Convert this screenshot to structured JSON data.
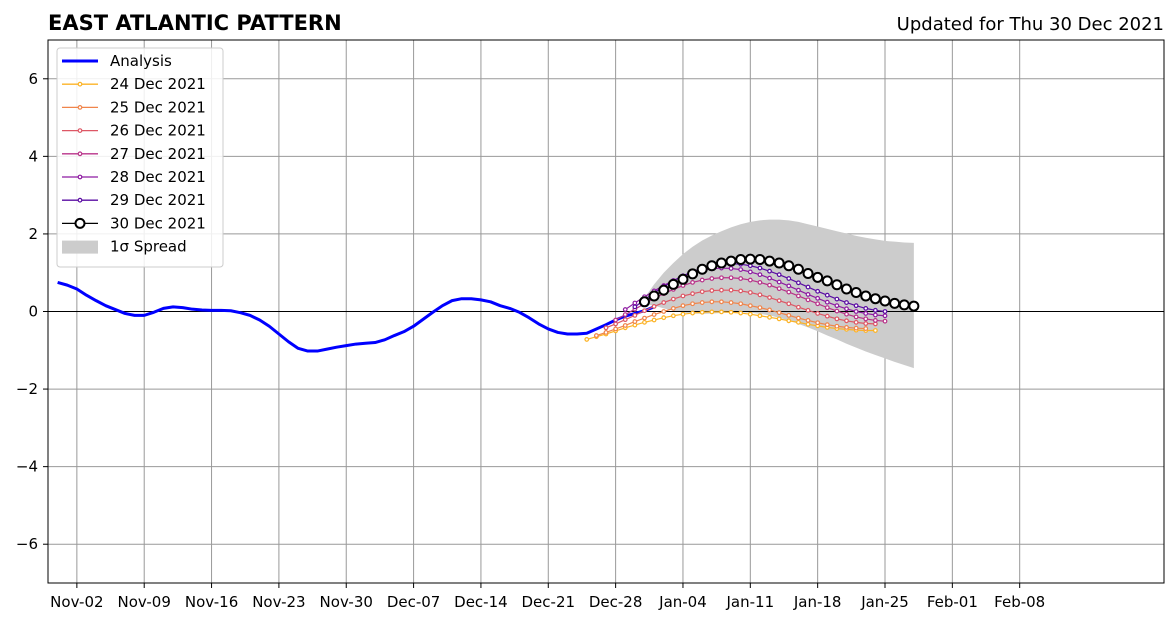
{
  "header": {
    "title": "EAST ATLANTIC PATTERN",
    "updated": "Updated for Thu 30 Dec 2021"
  },
  "chart_data": {
    "type": "line",
    "xlim": [
      -3,
      113
    ],
    "ylim": [
      -7,
      7
    ],
    "xticks": [
      {
        "x": 0,
        "label": "Nov-02"
      },
      {
        "x": 7,
        "label": "Nov-09"
      },
      {
        "x": 14,
        "label": "Nov-16"
      },
      {
        "x": 21,
        "label": "Nov-23"
      },
      {
        "x": 28,
        "label": "Nov-30"
      },
      {
        "x": 35,
        "label": "Dec-07"
      },
      {
        "x": 42,
        "label": "Dec-14"
      },
      {
        "x": 49,
        "label": "Dec-21"
      },
      {
        "x": 56,
        "label": "Dec-28"
      },
      {
        "x": 63,
        "label": "Jan-04"
      },
      {
        "x": 70,
        "label": "Jan-11"
      },
      {
        "x": 77,
        "label": "Jan-18"
      },
      {
        "x": 84,
        "label": "Jan-25"
      },
      {
        "x": 91,
        "label": "Feb-01"
      },
      {
        "x": 98,
        "label": "Feb-08"
      }
    ],
    "yticks": [
      {
        "y": -6,
        "label": "−6"
      },
      {
        "y": -4,
        "label": "−4"
      },
      {
        "y": -2,
        "label": "−2"
      },
      {
        "y": 0,
        "label": "0"
      },
      {
        "y": 2,
        "label": "2"
      },
      {
        "y": 4,
        "label": "4"
      },
      {
        "y": 6,
        "label": "6"
      }
    ],
    "grid": true,
    "legend_position": "top-left",
    "analysis": {
      "name": "Analysis",
      "color": "#0000ff",
      "start_x": -2,
      "values": [
        0.75,
        0.68,
        0.58,
        0.42,
        0.28,
        0.15,
        0.05,
        -0.05,
        -0.1,
        -0.1,
        -0.02,
        0.08,
        0.12,
        0.1,
        0.06,
        0.04,
        0.03,
        0.03,
        0.02,
        -0.03,
        -0.1,
        -0.22,
        -0.38,
        -0.58,
        -0.78,
        -0.95,
        -1.02,
        -1.02,
        -0.97,
        -0.92,
        -0.88,
        -0.84,
        -0.82,
        -0.8,
        -0.73,
        -0.62,
        -0.52,
        -0.38,
        -0.2,
        -0.02,
        0.15,
        0.28,
        0.33,
        0.33,
        0.3,
        0.25,
        0.15,
        0.08,
        -0.02,
        -0.16,
        -0.32,
        -0.45,
        -0.54,
        -0.58,
        -0.58,
        -0.56,
        -0.45,
        -0.34,
        -0.22,
        -0.12,
        -0.05,
        0.02,
        0.12
      ]
    },
    "forecasts": [
      {
        "name": "24 Dec 2021",
        "color": "#fcb326",
        "start_x": 53,
        "values": [
          -0.72,
          -0.65,
          -0.58,
          -0.5,
          -0.42,
          -0.35,
          -0.28,
          -0.22,
          -0.16,
          -0.11,
          -0.07,
          -0.04,
          -0.02,
          -0.01,
          -0.01,
          -0.02,
          -0.04,
          -0.07,
          -0.11,
          -0.15,
          -0.19,
          -0.24,
          -0.28,
          -0.33,
          -0.37,
          -0.41,
          -0.44,
          -0.46,
          -0.48,
          -0.49,
          -0.49
        ]
      },
      {
        "name": "25 Dec 2021",
        "color": "#f0854b",
        "start_x": 54,
        "values": [
          -0.62,
          -0.54,
          -0.45,
          -0.36,
          -0.26,
          -0.17,
          -0.08,
          0.0,
          0.08,
          0.15,
          0.2,
          0.23,
          0.25,
          0.25,
          0.23,
          0.2,
          0.15,
          0.1,
          0.04,
          -0.03,
          -0.1,
          -0.17,
          -0.23,
          -0.29,
          -0.34,
          -0.38,
          -0.41,
          -0.43,
          -0.44
        ]
      },
      {
        "name": "26 Dec 2021",
        "color": "#dd5765",
        "start_x": 55,
        "values": [
          -0.42,
          -0.32,
          -0.21,
          -0.1,
          0.02,
          0.13,
          0.23,
          0.32,
          0.4,
          0.46,
          0.51,
          0.54,
          0.55,
          0.55,
          0.53,
          0.49,
          0.43,
          0.36,
          0.28,
          0.2,
          0.11,
          0.03,
          -0.05,
          -0.12,
          -0.19,
          -0.24,
          -0.28,
          -0.31,
          -0.32
        ]
      },
      {
        "name": "27 Dec 2021",
        "color": "#b83289",
        "start_x": 56,
        "values": [
          -0.22,
          -0.08,
          0.06,
          0.2,
          0.34,
          0.46,
          0.57,
          0.67,
          0.75,
          0.81,
          0.85,
          0.87,
          0.87,
          0.85,
          0.81,
          0.75,
          0.68,
          0.59,
          0.5,
          0.4,
          0.3,
          0.2,
          0.1,
          0.01,
          -0.07,
          -0.14,
          -0.19,
          -0.23,
          -0.25
        ]
      },
      {
        "name": "28 Dec 2021",
        "color": "#8e1ba2",
        "start_x": 57,
        "values": [
          0.05,
          0.22,
          0.38,
          0.53,
          0.67,
          0.8,
          0.91,
          1.0,
          1.06,
          1.1,
          1.12,
          1.11,
          1.08,
          1.02,
          0.95,
          0.86,
          0.76,
          0.66,
          0.55,
          0.44,
          0.34,
          0.24,
          0.15,
          0.07,
          0.0,
          -0.05,
          -0.09,
          -0.11
        ]
      },
      {
        "name": "29 Dec 2021",
        "color": "#5a0ca3",
        "start_x": 58,
        "values": [
          0.12,
          0.3,
          0.48,
          0.64,
          0.79,
          0.92,
          1.03,
          1.12,
          1.18,
          1.22,
          1.23,
          1.22,
          1.18,
          1.12,
          1.04,
          0.95,
          0.85,
          0.74,
          0.63,
          0.52,
          0.42,
          0.32,
          0.23,
          0.15,
          0.08,
          0.03,
          0.0
        ]
      },
      {
        "name": "30 Dec 2021",
        "color": "#000000",
        "start_x": 59,
        "values": [
          0.25,
          0.4,
          0.55,
          0.7,
          0.83,
          0.97,
          1.09,
          1.18,
          1.25,
          1.3,
          1.34,
          1.35,
          1.34,
          1.3,
          1.25,
          1.18,
          1.09,
          0.98,
          0.88,
          0.79,
          0.69,
          0.58,
          0.49,
          0.4,
          0.33,
          0.27,
          0.21,
          0.17,
          0.14
        ]
      }
    ],
    "spread": {
      "name": "1σ Spread",
      "color": "#cccccc",
      "x_range": [
        59,
        87
      ],
      "upper": [
        0.35,
        0.7,
        1.0,
        1.25,
        1.48,
        1.67,
        1.83,
        1.96,
        2.07,
        2.17,
        2.25,
        2.31,
        2.35,
        2.37,
        2.37,
        2.35,
        2.31,
        2.25,
        2.19,
        2.13,
        2.07,
        2.01,
        1.95,
        1.9,
        1.86,
        1.82,
        1.8,
        1.78,
        1.77
      ],
      "lower": [
        0.2,
        0.15,
        0.08,
        0.02,
        -0.03,
        -0.05,
        -0.06,
        -0.05,
        -0.04,
        -0.03,
        -0.02,
        -0.03,
        -0.06,
        -0.1,
        -0.16,
        -0.23,
        -0.32,
        -0.41,
        -0.51,
        -0.62,
        -0.72,
        -0.83,
        -0.93,
        -1.03,
        -1.12,
        -1.21,
        -1.3,
        -1.38,
        -1.46
      ]
    }
  }
}
